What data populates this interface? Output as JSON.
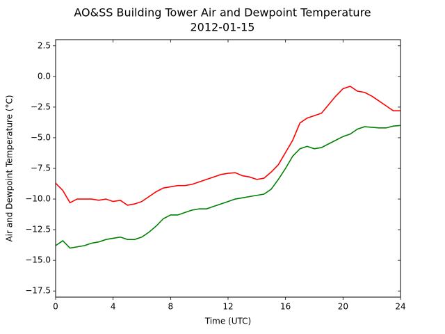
{
  "chart_data": {
    "type": "line",
    "title": "AO&SS Building Tower Air and Dewpoint Temperature",
    "subtitle": "2012-01-15",
    "x_label": "Time (UTC)",
    "y_label": "Air and Dewpoint Temperature (°C)",
    "x": [
      0,
      0.5,
      1,
      1.5,
      2,
      2.5,
      3,
      3.5,
      4,
      4.5,
      5,
      5.5,
      6,
      6.5,
      7,
      7.5,
      8,
      8.5,
      9,
      9.5,
      10,
      10.5,
      11,
      11.5,
      12,
      12.5,
      13,
      13.5,
      14,
      14.5,
      15,
      15.5,
      16,
      16.5,
      17,
      17.5,
      18,
      18.5,
      19,
      19.5,
      20,
      20.5,
      21,
      21.5,
      22,
      22.5,
      23,
      23.5,
      24
    ],
    "series": [
      {
        "color": "#ff0000",
        "values": [
          -8.7,
          -9.3,
          -10.3,
          -10.0,
          -10.0,
          -10.0,
          -10.1,
          -10.0,
          -10.2,
          -10.1,
          -10.5,
          -10.4,
          -10.2,
          -9.8,
          -9.4,
          -9.1,
          -9.0,
          -8.9,
          -8.9,
          -8.8,
          -8.6,
          -8.4,
          -8.2,
          -8.0,
          -7.9,
          -7.85,
          -8.1,
          -8.2,
          -8.4,
          -8.3,
          -7.8,
          -7.2,
          -6.2,
          -5.2,
          -3.8,
          -3.4,
          -3.2,
          -3.0,
          -2.3,
          -1.6,
          -1.0,
          -0.8,
          -1.2,
          -1.3,
          -1.6,
          -2.0,
          -2.4,
          -2.8,
          -2.8
        ]
      },
      {
        "color": "#008000",
        "values": [
          -13.8,
          -13.4,
          -14.0,
          -13.9,
          -13.8,
          -13.6,
          -13.5,
          -13.3,
          -13.2,
          -13.1,
          -13.3,
          -13.3,
          -13.1,
          -12.7,
          -12.2,
          -11.6,
          -11.3,
          -11.3,
          -11.1,
          -10.9,
          -10.8,
          -10.8,
          -10.6,
          -10.4,
          -10.2,
          -10.0,
          -9.9,
          -9.8,
          -9.7,
          -9.6,
          -9.2,
          -8.4,
          -7.5,
          -6.5,
          -5.9,
          -5.7,
          -5.9,
          -5.8,
          -5.5,
          -5.2,
          -4.9,
          -4.7,
          -4.3,
          -4.1,
          -4.15,
          -4.2,
          -4.2,
          -4.05,
          -4.0
        ]
      }
    ],
    "xlim": [
      0,
      24
    ],
    "xticks": [
      0,
      4,
      8,
      12,
      16,
      20,
      24
    ],
    "ylim": [
      -18,
      3
    ],
    "yticks": [
      {
        "value": -17.5,
        "label": "−17.5"
      },
      {
        "value": -15,
        "label": "−15.0"
      },
      {
        "value": -12.5,
        "label": "−12.5"
      },
      {
        "value": -10,
        "label": "−10.0"
      },
      {
        "value": -7.5,
        "label": "−7.5"
      },
      {
        "value": -5,
        "label": "−5.0"
      },
      {
        "value": -2.5,
        "label": "−2.5"
      },
      {
        "value": 0,
        "label": "0.0"
      },
      2.5
    ],
    "grid": false
  }
}
